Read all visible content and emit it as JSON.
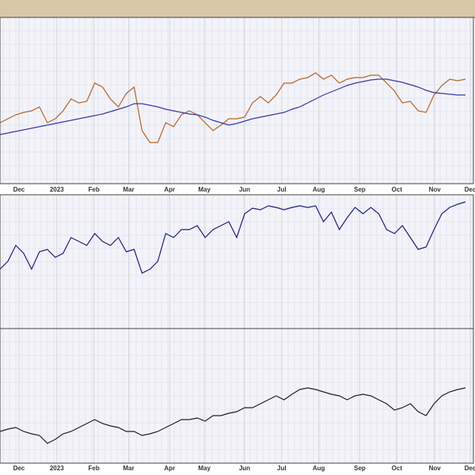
{
  "chart_data": [
    {
      "type": "line",
      "x": [
        0,
        1,
        2,
        3,
        4,
        5,
        6,
        7,
        8,
        9,
        10,
        11,
        12,
        13,
        14,
        15,
        16,
        17,
        18,
        19,
        20,
        21,
        22,
        23,
        24,
        25,
        26,
        27,
        28,
        29,
        30,
        31,
        32,
        33,
        34,
        35,
        36,
        37,
        38,
        39,
        40,
        41,
        42,
        43,
        44,
        45,
        46,
        47,
        48,
        49,
        50,
        51,
        52,
        53,
        54,
        55,
        56,
        57,
        58,
        59
      ],
      "xlim": [
        0,
        60
      ],
      "ylim": [
        0,
        210
      ],
      "grid": true,
      "xticks": [
        {
          "value": 2.4,
          "label": "Dec"
        },
        {
          "value": 7.2,
          "label": "2023"
        },
        {
          "value": 11.9,
          "label": "Feb"
        },
        {
          "value": 16.3,
          "label": "Mar"
        },
        {
          "value": 21.5,
          "label": "Apr"
        },
        {
          "value": 25.9,
          "label": "May"
        },
        {
          "value": 31,
          "label": "Jun"
        },
        {
          "value": 35.7,
          "label": "Jul"
        },
        {
          "value": 40.4,
          "label": "Aug"
        },
        {
          "value": 45.6,
          "label": "Sep"
        },
        {
          "value": 50.3,
          "label": "Oct"
        },
        {
          "value": 55.1,
          "label": "Nov"
        },
        {
          "value": 59.6,
          "label": "Dec"
        }
      ],
      "series": [
        {
          "color": "#b5652a",
          "values": [
            77,
            82,
            87,
            90,
            92,
            97,
            77,
            82,
            92,
            107,
            102,
            104,
            127,
            122,
            107,
            97,
            114,
            122,
            67,
            52,
            52,
            77,
            72,
            87,
            92,
            87,
            77,
            67,
            74,
            82,
            82,
            84,
            102,
            110,
            102,
            112,
            127,
            127,
            132,
            134,
            140,
            132,
            137,
            127,
            132,
            134,
            134,
            137,
            137,
            127,
            117,
            102,
            104,
            92,
            90,
            112,
            124,
            132,
            130,
            132
          ]
        },
        {
          "color": "#3a3aa8",
          "values": [
            62,
            64,
            66,
            68,
            70,
            72,
            74,
            76,
            78,
            80,
            82,
            84,
            86,
            88,
            91,
            94,
            97,
            101,
            101,
            99,
            97,
            94,
            92,
            90,
            88,
            87,
            84,
            80,
            77,
            74,
            76,
            79,
            82,
            84,
            86,
            88,
            90,
            94,
            97,
            102,
            107,
            112,
            116,
            120,
            124,
            127,
            129,
            131,
            132,
            132,
            130,
            128,
            125,
            122,
            118,
            115,
            114,
            113,
            112,
            112
          ]
        }
      ]
    },
    {
      "type": "line",
      "x": [
        0,
        1,
        2,
        3,
        4,
        5,
        6,
        7,
        8,
        9,
        10,
        11,
        12,
        13,
        14,
        15,
        16,
        17,
        18,
        19,
        20,
        21,
        22,
        23,
        24,
        25,
        26,
        27,
        28,
        29,
        30,
        31,
        32,
        33,
        34,
        35,
        36,
        37,
        38,
        39,
        40,
        41,
        42,
        43,
        44,
        45,
        46,
        47,
        48,
        49,
        50,
        51,
        52,
        53,
        54,
        55,
        56,
        57,
        58,
        59
      ],
      "xlim": [
        0,
        60
      ],
      "ylim": [
        0,
        169
      ],
      "grid": true,
      "series": [
        {
          "color": "#1a237e",
          "values": [
            75,
            85,
            105,
            95,
            75,
            97,
            100,
            90,
            95,
            115,
            110,
            105,
            120,
            110,
            105,
            115,
            97,
            100,
            70,
            75,
            85,
            120,
            115,
            125,
            125,
            130,
            115,
            125,
            130,
            135,
            115,
            145,
            152,
            150,
            155,
            153,
            150,
            153,
            155,
            153,
            155,
            135,
            147,
            125,
            140,
            153,
            145,
            153,
            145,
            125,
            120,
            130,
            115,
            100,
            103,
            125,
            145,
            153,
            157,
            160
          ]
        }
      ]
    },
    {
      "type": "line",
      "x": [
        0,
        1,
        2,
        3,
        4,
        5,
        6,
        7,
        8,
        9,
        10,
        11,
        12,
        13,
        14,
        15,
        16,
        17,
        18,
        19,
        20,
        21,
        22,
        23,
        24,
        25,
        26,
        27,
        28,
        29,
        30,
        31,
        32,
        33,
        34,
        35,
        36,
        37,
        38,
        39,
        40,
        41,
        42,
        43,
        44,
        45,
        46,
        47,
        48,
        49,
        50,
        51,
        52,
        53,
        54,
        55,
        56,
        57,
        58,
        59
      ],
      "xlim": [
        0,
        60
      ],
      "ylim": [
        0,
        170
      ],
      "grid": true,
      "xticks": [
        {
          "value": 2.4,
          "label": "Dec"
        },
        {
          "value": 7.2,
          "label": "2023"
        },
        {
          "value": 11.9,
          "label": "Feb"
        },
        {
          "value": 16.3,
          "label": "Mar"
        },
        {
          "value": 21.5,
          "label": "Apr"
        },
        {
          "value": 25.9,
          "label": "May"
        },
        {
          "value": 31,
          "label": "Jun"
        },
        {
          "value": 35.7,
          "label": "Jul"
        },
        {
          "value": 40.4,
          "label": "Aug"
        },
        {
          "value": 45.6,
          "label": "Sep"
        },
        {
          "value": 50.3,
          "label": "Oct"
        },
        {
          "value": 55.1,
          "label": "Nov"
        },
        {
          "value": 59.6,
          "label": "Dec"
        }
      ],
      "series": [
        {
          "color": "#222222",
          "values": [
            40,
            43,
            45,
            40,
            37,
            35,
            25,
            30,
            37,
            40,
            45,
            50,
            55,
            50,
            47,
            45,
            40,
            40,
            35,
            37,
            40,
            45,
            50,
            55,
            55,
            57,
            53,
            60,
            60,
            63,
            65,
            70,
            70,
            75,
            80,
            85,
            80,
            87,
            93,
            95,
            93,
            90,
            87,
            85,
            80,
            85,
            87,
            85,
            80,
            75,
            67,
            70,
            75,
            65,
            60,
            75,
            85,
            90,
            93,
            95
          ]
        }
      ]
    }
  ]
}
